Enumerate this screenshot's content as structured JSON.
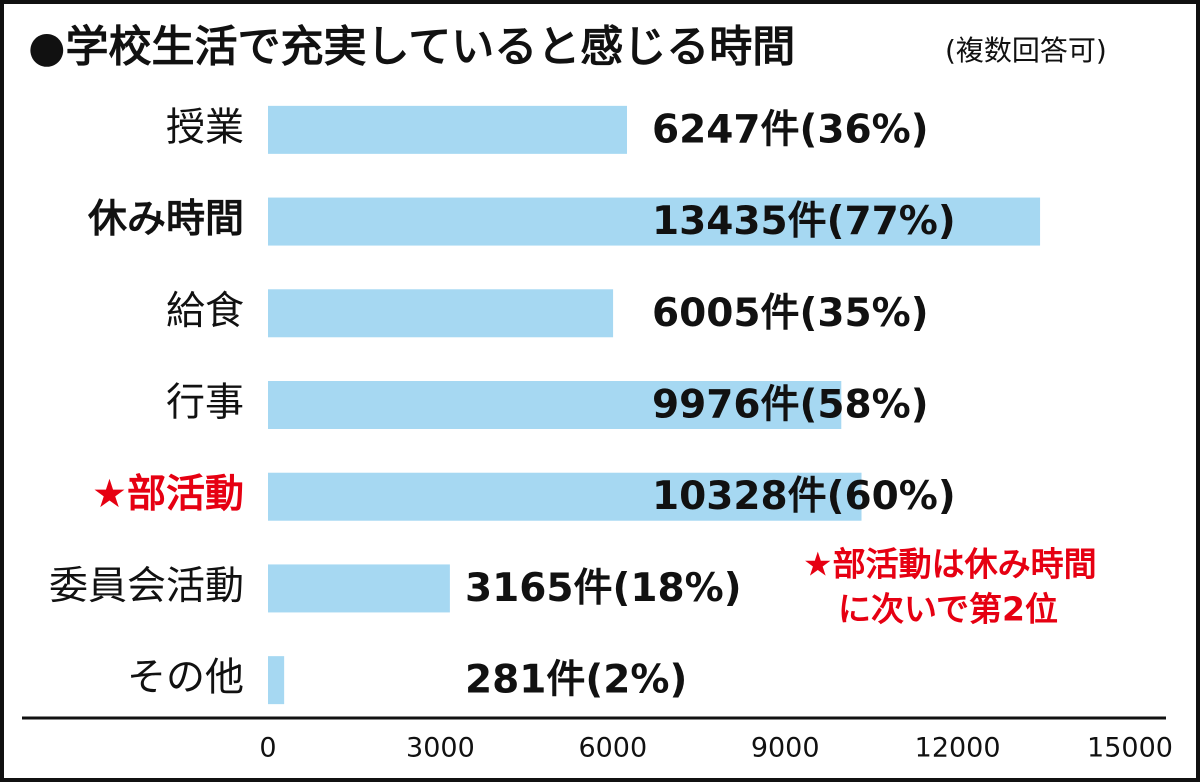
{
  "chart_data": {
    "type": "hbar",
    "title": "●学校生活で充実していると感じる時間",
    "subtitle": "(複数回答可)",
    "categories": [
      "授業",
      "休み時間",
      "給食",
      "行事",
      "★部活動",
      "委員会活動",
      "その他"
    ],
    "values": [
      6247,
      13435,
      6005,
      9976,
      10328,
      3165,
      281
    ],
    "value_labels": [
      "6247件(36%)",
      "13435件(77%)",
      "6005件(35%)",
      "9976件(58%)",
      "10328件(60%)",
      "3165件(18%)",
      "281件(2%)"
    ],
    "color": "#a6d8f2",
    "label_colors": [
      "#111111",
      "#111111",
      "#111111",
      "#111111",
      "#e60012",
      "#111111",
      "#111111"
    ],
    "label_bold": [
      false,
      true,
      false,
      false,
      true,
      false,
      false
    ],
    "xlim": [
      0,
      15000
    ],
    "xticks": [
      0,
      3000,
      6000,
      9000,
      12000,
      15000
    ],
    "annotation": {
      "lines": [
        "★部活動は休み時間",
        "に次いで第2位"
      ],
      "color": "#e60012"
    }
  }
}
